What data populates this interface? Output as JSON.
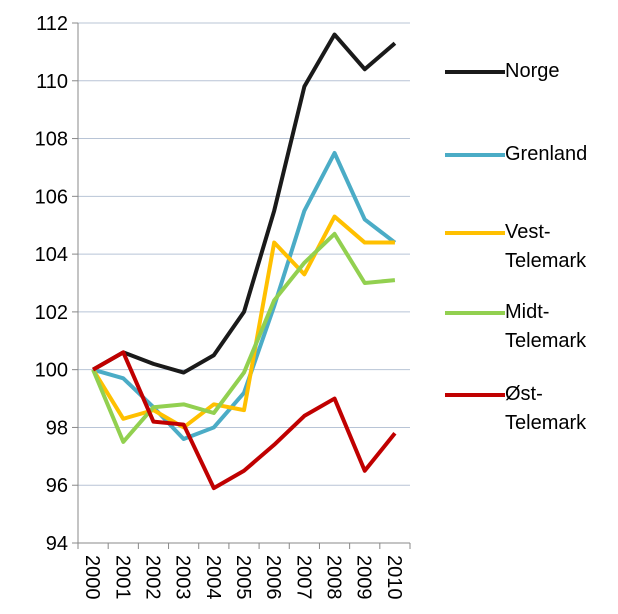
{
  "chart_data": {
    "type": "line",
    "categories": [
      "2000",
      "2001",
      "2002",
      "2003",
      "2004",
      "2005",
      "2006",
      "2007",
      "2008",
      "2009",
      "2010"
    ],
    "series": [
      {
        "name": "Norge",
        "color": "#1a1a1a",
        "values": [
          100,
          100.6,
          100.2,
          99.9,
          100.5,
          102.0,
          105.5,
          109.8,
          111.6,
          110.4,
          111.3
        ]
      },
      {
        "name": "Grenland",
        "color": "#4bacc6",
        "values": [
          100,
          99.7,
          98.7,
          97.6,
          98.0,
          99.2,
          102.2,
          105.5,
          107.5,
          105.2,
          104.4
        ]
      },
      {
        "name": "Vest-Telemark",
        "color": "#ffc000",
        "values": [
          100,
          98.3,
          98.6,
          98.0,
          98.8,
          98.6,
          104.4,
          103.3,
          105.3,
          104.4,
          104.4
        ]
      },
      {
        "name": "Midt-Telemark",
        "color": "#92d050",
        "values": [
          100,
          97.5,
          98.7,
          98.8,
          98.5,
          99.9,
          102.4,
          103.7,
          104.7,
          103.0,
          103.1
        ]
      },
      {
        "name": "Øst-Telemark",
        "color": "#c00000",
        "values": [
          100,
          100.6,
          98.2,
          98.1,
          95.9,
          96.5,
          97.4,
          98.4,
          99.0,
          96.5,
          97.8
        ]
      }
    ],
    "ylim": [
      94,
      112
    ],
    "yticks": [
      94,
      96,
      98,
      100,
      102,
      104,
      106,
      108,
      110,
      112
    ],
    "grid": true,
    "legend": "right"
  }
}
